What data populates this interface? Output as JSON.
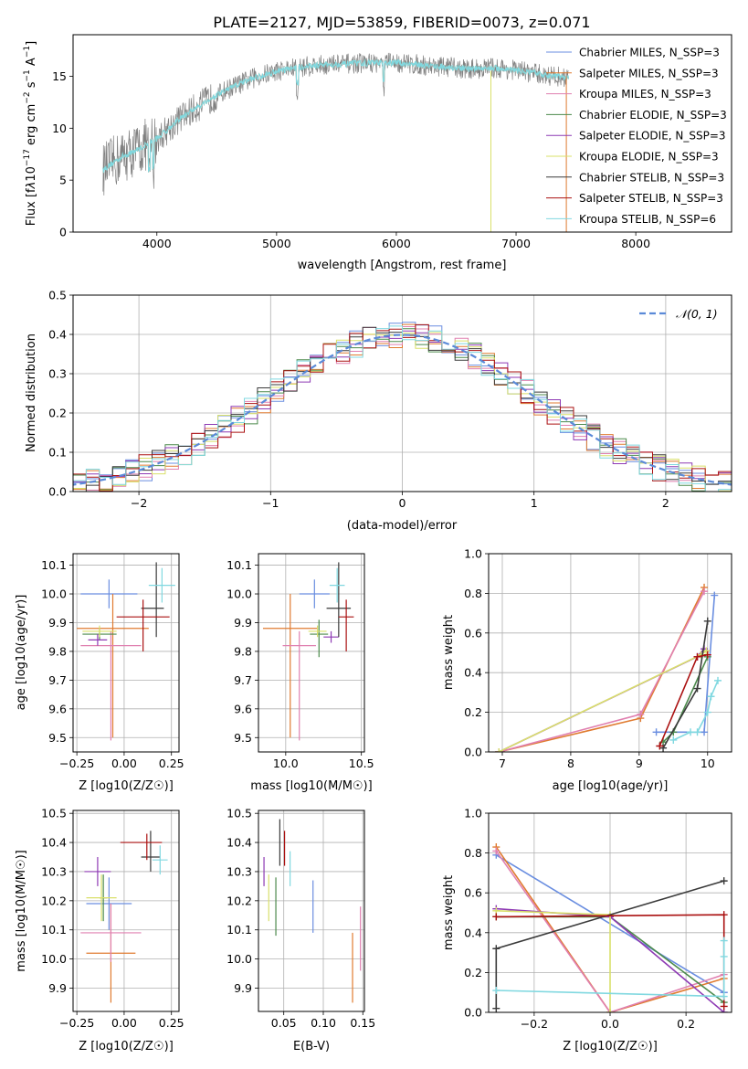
{
  "figure": {
    "title": "PLATE=2127, MJD=53859, FIBERID=0073, z=0.071",
    "model_colors": [
      "#6a8ee0",
      "#e07b30",
      "#e080b0",
      "#4c8a4c",
      "#8e3ab4",
      "#d9e06a",
      "#3a3a3a",
      "#aa1010",
      "#80d8e0"
    ],
    "model_names": [
      "Chabrier MILES",
      "Salpeter MILES",
      "Kroupa MILES",
      "Chabrier ELODIE",
      "Salpeter ELODIE",
      "Kroupa ELODIE",
      "Chabrier STELIB",
      "Salpeter STELIB",
      "Kroupa STELIB"
    ],
    "model_nssp": [
      "3",
      "3",
      "3",
      "3",
      "3",
      "3",
      "3",
      "3",
      "6"
    ]
  },
  "chart_data": [
    {
      "id": "spectrum",
      "type": "line",
      "title": "PLATE=2127, MJD=53859, FIBERID=0073, z=0.071",
      "xlabel": "wavelength [Angstrom, rest frame]",
      "ylabel": "Flux [fλ10^-17 erg cm^-2 s^-1 A^-1]",
      "xlim": [
        3300,
        8800
      ],
      "ylim": [
        0,
        19
      ],
      "xticks": [
        4000,
        5000,
        6000,
        7000,
        8000
      ],
      "yticks": [
        0,
        5,
        10,
        15
      ],
      "continuum": {
        "x": [
          3550,
          3700,
          3850,
          4000,
          4200,
          4400,
          4600,
          4800,
          5000,
          5200,
          5400,
          5600,
          5800,
          6000,
          6200,
          6400,
          6600,
          6800,
          7000,
          7200,
          7400
        ],
        "y": [
          6.0,
          7.2,
          8.0,
          9.0,
          11.0,
          12.5,
          13.8,
          14.8,
          15.5,
          15.9,
          16.1,
          16.2,
          16.3,
          16.3,
          16.1,
          15.9,
          15.7,
          15.8,
          15.6,
          15.2,
          14.9
        ]
      },
      "legend": [
        "Chabrier MILES, N_SSP=3",
        "Salpeter MILES, N_SSP=3",
        "Kroupa MILES, N_SSP=3",
        "Chabrier ELODIE, N_SSP=3",
        "Salpeter ELODIE, N_SSP=3",
        "Kroupa ELODIE, N_SSP=3",
        "Chabrier STELIB, N_SSP=3",
        "Salpeter STELIB, N_SSP=3",
        "Kroupa STELIB, N_SSP=6"
      ]
    },
    {
      "id": "residuals",
      "type": "line",
      "xlabel": "(data-model)/error",
      "ylabel": "Normed distribution",
      "xlim": [
        -2.5,
        2.5
      ],
      "ylim": [
        0,
        0.5
      ],
      "xticks": [
        -2,
        -1,
        0,
        1,
        2
      ],
      "yticks": [
        0.0,
        0.1,
        0.2,
        0.3,
        0.4,
        0.5
      ],
      "bin_width": 0.1,
      "legend": [
        "N(0,1)"
      ],
      "grid": true
    },
    {
      "id": "age_vs_Z",
      "type": "scatter",
      "xlabel": "Z [log10(Z/Z☉)]",
      "ylabel": "age  [log10(age/yr)]",
      "xlim": [
        -0.27,
        0.29
      ],
      "ylim": [
        9.45,
        10.14
      ],
      "xticks": [
        -0.25,
        0.0,
        0.25
      ],
      "yticks": [
        9.5,
        9.6,
        9.7,
        9.8,
        9.9,
        10.0,
        10.1
      ],
      "points": [
        {
          "x": -0.08,
          "y": 10.0,
          "xerr": [
            0.15,
            0.15
          ],
          "yerr": [
            0.05,
            0.05
          ]
        },
        {
          "x": -0.06,
          "y": 9.88,
          "xerr": [
            0.19,
            0.19
          ],
          "yerr": [
            0.38,
            0.12
          ]
        },
        {
          "x": -0.07,
          "y": 9.82,
          "xerr": [
            0.16,
            0.16
          ],
          "yerr": [
            0.33,
            0.05
          ]
        },
        {
          "x": -0.13,
          "y": 9.86,
          "xerr": [
            0.09,
            0.09
          ],
          "yerr": [
            0.02,
            0.02
          ]
        },
        {
          "x": -0.14,
          "y": 9.84,
          "xerr": [
            0.05,
            0.05
          ],
          "yerr": [
            0.02,
            0.02
          ]
        },
        {
          "x": -0.13,
          "y": 9.87,
          "xerr": [
            0.09,
            0.09
          ],
          "yerr": [
            0.02,
            0.02
          ]
        },
        {
          "x": 0.17,
          "y": 9.95,
          "xerr": [
            0.08,
            0.04
          ],
          "yerr": [
            0.1,
            0.16
          ]
        },
        {
          "x": 0.1,
          "y": 9.92,
          "xerr": [
            0.14,
            0.14
          ],
          "yerr": [
            0.12,
            0.06
          ]
        },
        {
          "x": 0.2,
          "y": 10.03,
          "xerr": [
            0.07,
            0.07
          ],
          "yerr": [
            0.06,
            0.06
          ]
        }
      ]
    },
    {
      "id": "age_vs_mass",
      "type": "scatter",
      "xlabel": "mass [log10(M/M☉)]",
      "ylabel": "",
      "xlim": [
        9.82,
        10.52
      ],
      "ylim": [
        9.45,
        10.14
      ],
      "xticks": [
        10.0,
        10.5
      ],
      "yticks": [
        9.5,
        9.6,
        9.7,
        9.8,
        9.9,
        10.0,
        10.1
      ],
      "points": [
        {
          "x": 10.19,
          "y": 10.0,
          "xerr": [
            0.1,
            0.1
          ],
          "yerr": [
            0.05,
            0.05
          ]
        },
        {
          "x": 10.03,
          "y": 9.88,
          "xerr": [
            0.18,
            0.18
          ],
          "yerr": [
            0.38,
            0.12
          ]
        },
        {
          "x": 10.09,
          "y": 9.82,
          "xerr": [
            0.11,
            0.11
          ],
          "yerr": [
            0.33,
            0.05
          ]
        },
        {
          "x": 10.22,
          "y": 9.86,
          "xerr": [
            0.06,
            0.06
          ],
          "yerr": [
            0.08,
            0.05
          ]
        },
        {
          "x": 10.3,
          "y": 9.85,
          "xerr": [
            0.05,
            0.05
          ],
          "yerr": [
            0.02,
            0.02
          ]
        },
        {
          "x": 10.21,
          "y": 9.87,
          "xerr": [
            0.06,
            0.06
          ],
          "yerr": [
            0.02,
            0.02
          ]
        },
        {
          "x": 10.35,
          "y": 9.95,
          "xerr": [
            0.08,
            0.08
          ],
          "yerr": [
            0.1,
            0.16
          ]
        },
        {
          "x": 10.4,
          "y": 9.92,
          "xerr": [
            0.05,
            0.05
          ],
          "yerr": [
            0.12,
            0.06
          ]
        },
        {
          "x": 10.34,
          "y": 10.03,
          "xerr": [
            0.05,
            0.05
          ],
          "yerr": [
            0.06,
            0.06
          ]
        }
      ]
    },
    {
      "id": "mass_weight_vs_age",
      "type": "line",
      "xlabel": "age  [log10(age/yr)]",
      "ylabel": "mass weight",
      "xlim": [
        6.8,
        10.35
      ],
      "ylim": [
        0,
        1
      ],
      "xticks": [
        7,
        8,
        9,
        10
      ],
      "yticks": [
        0.0,
        0.2,
        0.4,
        0.6,
        0.8,
        1.0
      ],
      "grid": true,
      "series": [
        {
          "x": [
            9.25,
            9.95,
            10.1
          ],
          "y": [
            0.1,
            0.1,
            0.79
          ]
        },
        {
          "x": [
            6.95,
            9.02,
            9.95
          ],
          "y": [
            0.0,
            0.17,
            0.83
          ]
        },
        {
          "x": [
            6.95,
            9.02,
            9.95
          ],
          "y": [
            0.0,
            0.19,
            0.81
          ]
        },
        {
          "x": [
            9.35,
            9.5,
            10.0
          ],
          "y": [
            0.05,
            0.1,
            0.48
          ]
        },
        {
          "x": [
            6.95,
            9.85,
            9.95
          ],
          "y": [
            0.0,
            0.48,
            0.52
          ]
        },
        {
          "x": [
            6.95,
            9.9,
            9.98
          ],
          "y": [
            0.0,
            0.49,
            0.51
          ]
        },
        {
          "x": [
            9.35,
            9.85,
            10.0
          ],
          "y": [
            0.02,
            0.32,
            0.66
          ]
        },
        {
          "x": [
            9.3,
            9.85,
            10.0
          ],
          "y": [
            0.03,
            0.48,
            0.49
          ]
        },
        {
          "x": [
            9.5,
            9.75,
            9.85,
            10.0,
            10.05,
            10.15
          ],
          "y": [
            0.06,
            0.1,
            0.1,
            0.2,
            0.28,
            0.36
          ]
        }
      ]
    },
    {
      "id": "mass_vs_Z",
      "type": "scatter",
      "xlabel": "Z [log10(Z/Z☉)]",
      "ylabel": "mass [log10(M/M☉)]",
      "xlim": [
        -0.27,
        0.29
      ],
      "ylim": [
        9.82,
        10.51
      ],
      "xticks": [
        -0.25,
        0.0,
        0.25
      ],
      "yticks": [
        9.9,
        10.0,
        10.1,
        10.2,
        10.3,
        10.4,
        10.5
      ],
      "points": [
        {
          "x": -0.08,
          "y": 10.19,
          "xerr": [
            0.12,
            0.12
          ],
          "yerr": [
            0.09,
            0.09
          ]
        },
        {
          "x": -0.07,
          "y": 10.02,
          "xerr": [
            0.13,
            0.13
          ],
          "yerr": [
            0.17,
            0.17
          ]
        },
        {
          "x": -0.07,
          "y": 10.09,
          "xerr": [
            0.16,
            0.16
          ],
          "yerr": [
            0.1,
            0.1
          ]
        },
        {
          "x": -0.11,
          "y": 10.21,
          "xerr": [
            0.02,
            0.02
          ],
          "yerr": [
            0.08,
            0.08
          ]
        },
        {
          "x": -0.14,
          "y": 10.3,
          "xerr": [
            0.07,
            0.07
          ],
          "yerr": [
            0.05,
            0.05
          ]
        },
        {
          "x": -0.12,
          "y": 10.21,
          "xerr": [
            0.08,
            0.08
          ],
          "yerr": [
            0.08,
            0.08
          ]
        },
        {
          "x": 0.14,
          "y": 10.35,
          "xerr": [
            0.05,
            0.05
          ],
          "yerr": [
            0.05,
            0.09
          ]
        },
        {
          "x": 0.12,
          "y": 10.4,
          "xerr": [
            0.14,
            0.08
          ],
          "yerr": [
            0.06,
            0.03
          ]
        },
        {
          "x": 0.19,
          "y": 10.34,
          "xerr": [
            0.04,
            0.04
          ],
          "yerr": [
            0.05,
            0.05
          ]
        }
      ]
    },
    {
      "id": "mass_vs_ebv",
      "type": "scatter",
      "xlabel": "E(B-V)",
      "ylabel": "",
      "xlim": [
        0.018,
        0.152
      ],
      "ylim": [
        9.82,
        10.51
      ],
      "xticks": [
        0.05,
        0.1,
        0.15
      ],
      "yticks": [
        9.9,
        10.0,
        10.1,
        10.2,
        10.3,
        10.4,
        10.5
      ],
      "points": [
        {
          "x": 0.087,
          "y": 10.18,
          "xerr": [
            0,
            0
          ],
          "yerr": [
            0.09,
            0.09
          ]
        },
        {
          "x": 0.137,
          "y": 9.97,
          "xerr": [
            0,
            0
          ],
          "yerr": [
            0.12,
            0.12
          ]
        },
        {
          "x": 0.147,
          "y": 10.07,
          "xerr": [
            0,
            0
          ],
          "yerr": [
            0.11,
            0.11
          ]
        },
        {
          "x": 0.04,
          "y": 10.18,
          "xerr": [
            0,
            0
          ],
          "yerr": [
            0.1,
            0.1
          ]
        },
        {
          "x": 0.025,
          "y": 10.3,
          "xerr": [
            0,
            0
          ],
          "yerr": [
            0.05,
            0.05
          ]
        },
        {
          "x": 0.031,
          "y": 10.21,
          "xerr": [
            0,
            0
          ],
          "yerr": [
            0.08,
            0.08
          ]
        },
        {
          "x": 0.045,
          "y": 10.4,
          "xerr": [
            0,
            0
          ],
          "yerr": [
            0.08,
            0.08
          ]
        },
        {
          "x": 0.051,
          "y": 10.38,
          "xerr": [
            0,
            0
          ],
          "yerr": [
            0.06,
            0.06
          ]
        },
        {
          "x": 0.058,
          "y": 10.31,
          "xerr": [
            0,
            0
          ],
          "yerr": [
            0.06,
            0.06
          ]
        }
      ]
    },
    {
      "id": "mass_weight_vs_Z",
      "type": "line",
      "xlabel": "Z [log10(Z/Z☉)]",
      "ylabel": "mass weight",
      "xlim": [
        -0.32,
        0.32
      ],
      "ylim": [
        0,
        1
      ],
      "xticks": [
        -0.2,
        0.0,
        0.2
      ],
      "yticks": [
        0.0,
        0.2,
        0.4,
        0.6,
        0.8,
        1.0
      ],
      "grid": true,
      "series": [
        {
          "x": [
            -0.3,
            0.3,
            0.3
          ],
          "y": [
            0.79,
            0.1,
            0.1
          ]
        },
        {
          "x": [
            -0.3,
            0.0,
            0.3
          ],
          "y": [
            0.83,
            0.0,
            0.17
          ]
        },
        {
          "x": [
            -0.3,
            0.0,
            0.3
          ],
          "y": [
            0.81,
            0.0,
            0.19
          ]
        },
        {
          "x": [
            -0.3,
            0.0,
            0.3
          ],
          "y": [
            0.48,
            0.48,
            0.05
          ]
        },
        {
          "x": [
            -0.3,
            0.0,
            0.3
          ],
          "y": [
            0.52,
            0.48,
            0.0
          ]
        },
        {
          "x": [
            -0.3,
            0.0,
            0.0
          ],
          "y": [
            0.51,
            0.49,
            0.0
          ]
        },
        {
          "x": [
            -0.3,
            -0.3,
            0.3
          ],
          "y": [
            0.02,
            0.32,
            0.66
          ]
        },
        {
          "x": [
            -0.3,
            0.3,
            0.3
          ],
          "y": [
            0.48,
            0.49,
            0.03
          ]
        },
        {
          "x": [
            -0.3,
            0.3,
            0.3,
            0.3
          ],
          "y": [
            0.11,
            0.08,
            0.28,
            0.36
          ]
        }
      ]
    }
  ]
}
